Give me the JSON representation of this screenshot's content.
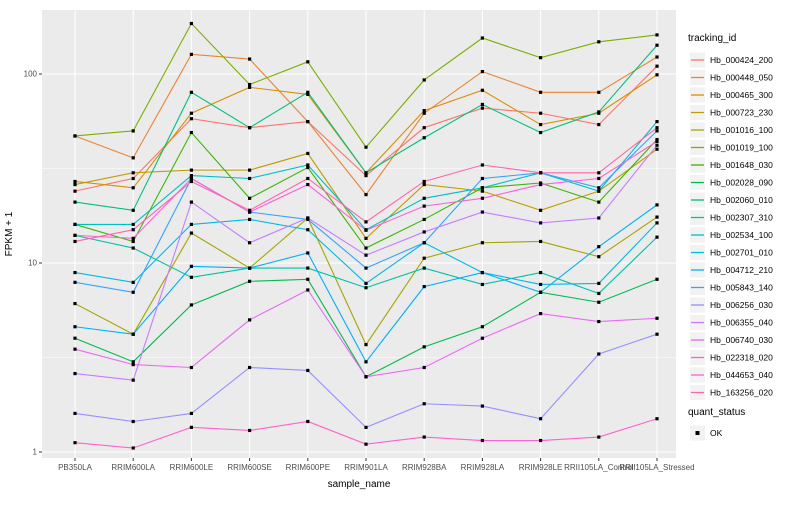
{
  "figure": {
    "background": "#FFFFFF",
    "panel_background": "#EBEBEB",
    "grid_color": "#FFFFFF",
    "tick_label_color": "#4D4D4D",
    "axis_title_color": "#000000",
    "legend_key_fill": "#F2F2F2",
    "point_color": "#000000"
  },
  "chart_data": {
    "type": "line",
    "title": "",
    "xlabel": "sample_name",
    "ylabel": "FPKM + 1",
    "y_scale": "log10",
    "ylim": [
      1,
      220
    ],
    "y_major_ticks": [
      1,
      10,
      100
    ],
    "y_minor_ticks": [
      3.162,
      31.62
    ],
    "grid": true,
    "legend_position": "right",
    "legend_title": "tracking_id",
    "point_marker": "black-square",
    "quant_legend": {
      "title": "quant_status",
      "items": [
        {
          "label": "OK",
          "marker": "black-square"
        }
      ]
    },
    "categories": [
      "PB350LA",
      "RRIM600LA",
      "RRIM600LE",
      "RRIM600SE",
      "RRIM600PE",
      "RRIM901LA",
      "RRIM928BA",
      "RRIM928LA",
      "RRIM928LE",
      "RRII105LA_Control",
      "RRII105LA_Stressed"
    ],
    "series": [
      {
        "name": "Hb_000424_200",
        "color": "#F8766D",
        "values": [
          24,
          28,
          58,
          52,
          56,
          29,
          52,
          66,
          62,
          54,
          110
        ]
      },
      {
        "name": "Hb_000448_050",
        "color": "#EA8331",
        "values": [
          47,
          36,
          127,
          120,
          56,
          23,
          62,
          103,
          80,
          80,
          123
        ]
      },
      {
        "name": "Hb_000465_300",
        "color": "#D89000",
        "values": [
          27,
          25,
          62,
          85,
          78,
          30,
          64,
          82,
          54,
          62,
          99
        ]
      },
      {
        "name": "Hb_000723_230",
        "color": "#C09B00",
        "values": [
          26,
          30,
          31,
          31,
          38,
          13.5,
          26,
          24,
          19,
          24,
          40
        ]
      },
      {
        "name": "Hb_001016_100",
        "color": "#A3A500",
        "values": [
          6.1,
          4.2,
          14.4,
          9.4,
          17.3,
          3.7,
          10.6,
          12.8,
          13,
          10.8,
          17.5
        ]
      },
      {
        "name": "Hb_001019_100",
        "color": "#7CAE00",
        "values": [
          47,
          50,
          185,
          88,
          116,
          41,
          93,
          155,
          122,
          148,
          161
        ]
      },
      {
        "name": "Hb_001648_030",
        "color": "#39B600",
        "values": [
          16,
          13,
          49,
          22,
          32,
          12,
          17,
          25,
          26.5,
          21,
          45
        ]
      },
      {
        "name": "Hb_002028_090",
        "color": "#00BB4E",
        "values": [
          4.0,
          3.0,
          6.0,
          8.0,
          8.2,
          2.5,
          3.6,
          4.6,
          7.0,
          6.2,
          8.2
        ]
      },
      {
        "name": "Hb_002060_010",
        "color": "#00BF7D",
        "values": [
          21,
          19,
          80,
          52,
          80,
          30,
          46,
          69,
          49,
          63,
          142
        ]
      },
      {
        "name": "Hb_002307_310",
        "color": "#00C1A3",
        "values": [
          14,
          12,
          8.4,
          9.4,
          9.4,
          7.4,
          9.4,
          7.7,
          8.9,
          6.9,
          13.7
        ]
      },
      {
        "name": "Hb_002534_100",
        "color": "#00BFC4",
        "values": [
          16,
          16,
          29,
          28,
          33,
          15,
          22,
          25,
          30,
          24,
          56
        ]
      },
      {
        "name": "Hb_002701_010",
        "color": "#00BAE0",
        "values": [
          8.9,
          7.9,
          16,
          17,
          15,
          7.8,
          12.8,
          8.9,
          7.7,
          7.8,
          16.3
        ]
      },
      {
        "name": "Hb_004712_210",
        "color": "#00B0F6",
        "values": [
          4.6,
          4.2,
          9.6,
          9.4,
          11.3,
          3.0,
          7.5,
          8.9,
          7.0,
          12.2,
          20.3
        ]
      },
      {
        "name": "Hb_005843_140",
        "color": "#35A2FF",
        "values": [
          7.9,
          7.0,
          28,
          18.6,
          17,
          9.4,
          12.8,
          28,
          30,
          25,
          50
        ]
      },
      {
        "name": "Hb_006256_030",
        "color": "#9590FF",
        "values": [
          1.6,
          1.45,
          1.6,
          2.8,
          2.7,
          1.35,
          1.8,
          1.75,
          1.5,
          3.3,
          4.2
        ]
      },
      {
        "name": "Hb_006355_040",
        "color": "#C77CFF",
        "values": [
          2.6,
          2.4,
          21,
          12.8,
          17.3,
          11,
          14.6,
          18.6,
          16.3,
          17.3,
          42
        ]
      },
      {
        "name": "Hb_006740_030",
        "color": "#E76BF3",
        "values": [
          3.5,
          2.9,
          2.8,
          5.0,
          7.2,
          2.5,
          2.8,
          4.0,
          5.4,
          4.9,
          5.1
        ]
      },
      {
        "name": "Hb_022318_020",
        "color": "#FA62DB",
        "values": [
          14,
          13.5,
          28,
          18.6,
          26,
          14.9,
          20,
          22,
          26,
          28,
          44
        ]
      },
      {
        "name": "Hb_044653_040",
        "color": "#FF61CC",
        "values": [
          1.12,
          1.05,
          1.35,
          1.3,
          1.45,
          1.1,
          1.2,
          1.15,
          1.15,
          1.2,
          1.5
        ]
      },
      {
        "name": "Hb_163256_020",
        "color": "#FF65AC",
        "values": [
          13,
          15,
          27,
          19,
          28,
          16.5,
          27,
          33,
          30,
          30,
          52
        ]
      }
    ]
  }
}
